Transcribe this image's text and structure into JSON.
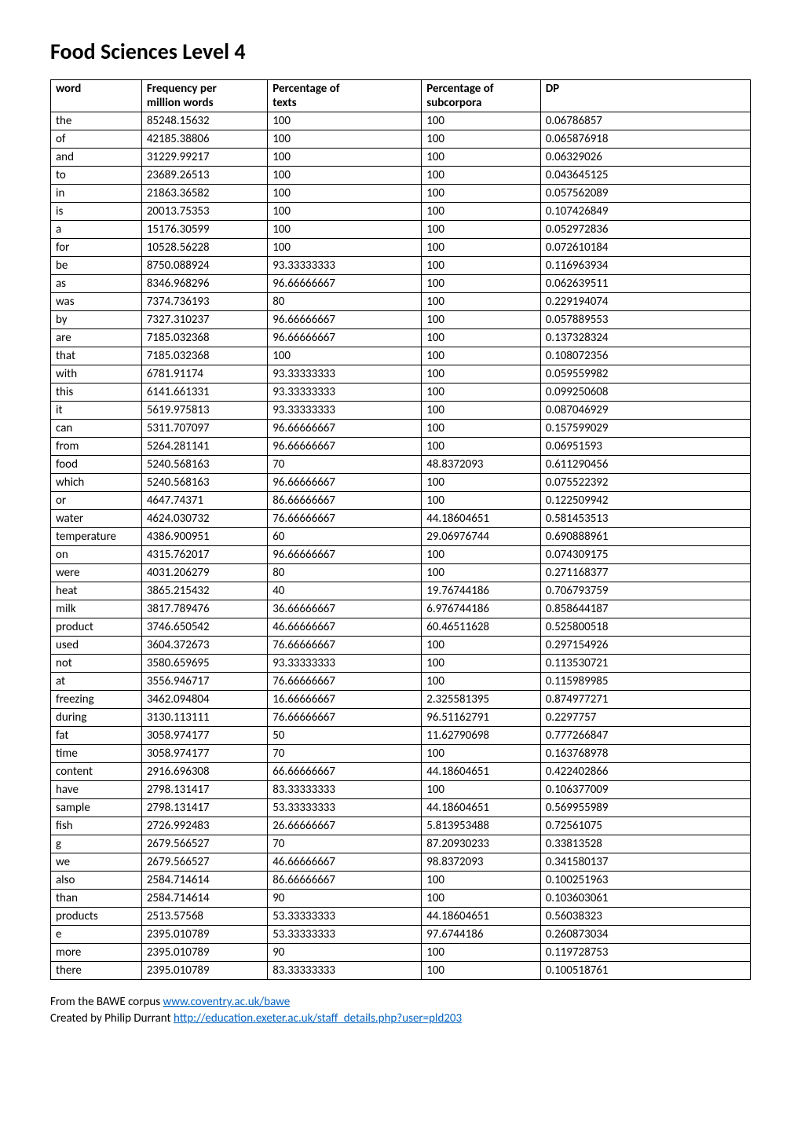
{
  "title": "Food Sciences  Level 4",
  "table": {
    "columns": [
      {
        "header_l1": "word",
        "header_l2": ""
      },
      {
        "header_l1": "Frequency per",
        "header_l2": "million words"
      },
      {
        "header_l1": "Percentage of",
        "header_l2": "texts"
      },
      {
        "header_l1": "Percentage of",
        "header_l2": "subcorpora"
      },
      {
        "header_l1": "DP",
        "header_l2": ""
      }
    ],
    "rows": [
      [
        "the",
        "85248.15632",
        "100",
        "100",
        "0.06786857"
      ],
      [
        "of",
        "42185.38806",
        "100",
        "100",
        "0.065876918"
      ],
      [
        "and",
        "31229.99217",
        "100",
        "100",
        "0.06329026"
      ],
      [
        "to",
        "23689.26513",
        "100",
        "100",
        "0.043645125"
      ],
      [
        "in",
        "21863.36582",
        "100",
        "100",
        "0.057562089"
      ],
      [
        "is",
        "20013.75353",
        "100",
        "100",
        "0.107426849"
      ],
      [
        "a",
        "15176.30599",
        "100",
        "100",
        "0.052972836"
      ],
      [
        "for",
        "10528.56228",
        "100",
        "100",
        "0.072610184"
      ],
      [
        "be",
        "8750.088924",
        "93.33333333",
        "100",
        "0.116963934"
      ],
      [
        "as",
        "8346.968296",
        "96.66666667",
        "100",
        "0.062639511"
      ],
      [
        "was",
        "7374.736193",
        "80",
        "100",
        "0.229194074"
      ],
      [
        "by",
        "7327.310237",
        "96.66666667",
        "100",
        "0.057889553"
      ],
      [
        "are",
        "7185.032368",
        "96.66666667",
        "100",
        "0.137328324"
      ],
      [
        "that",
        "7185.032368",
        "100",
        "100",
        "0.108072356"
      ],
      [
        "with",
        "6781.91174",
        "93.33333333",
        "100",
        "0.059559982"
      ],
      [
        "this",
        "6141.661331",
        "93.33333333",
        "100",
        "0.099250608"
      ],
      [
        "it",
        "5619.975813",
        "93.33333333",
        "100",
        "0.087046929"
      ],
      [
        "can",
        "5311.707097",
        "96.66666667",
        "100",
        "0.157599029"
      ],
      [
        "from",
        "5264.281141",
        "96.66666667",
        "100",
        "0.06951593"
      ],
      [
        "food",
        "5240.568163",
        "70",
        "48.8372093",
        "0.611290456"
      ],
      [
        "which",
        "5240.568163",
        "96.66666667",
        "100",
        "0.075522392"
      ],
      [
        "or",
        "4647.74371",
        "86.66666667",
        "100",
        "0.122509942"
      ],
      [
        "water",
        "4624.030732",
        "76.66666667",
        "44.18604651",
        "0.581453513"
      ],
      [
        "temperature",
        "4386.900951",
        "60",
        "29.06976744",
        "0.690888961"
      ],
      [
        "on",
        "4315.762017",
        "96.66666667",
        "100",
        "0.074309175"
      ],
      [
        "were",
        "4031.206279",
        "80",
        "100",
        "0.271168377"
      ],
      [
        "heat",
        "3865.215432",
        "40",
        "19.76744186",
        "0.706793759"
      ],
      [
        "milk",
        "3817.789476",
        "36.66666667",
        "6.976744186",
        "0.858644187"
      ],
      [
        "product",
        "3746.650542",
        "46.66666667",
        "60.46511628",
        "0.525800518"
      ],
      [
        "used",
        "3604.372673",
        "76.66666667",
        "100",
        "0.297154926"
      ],
      [
        "not",
        "3580.659695",
        "93.33333333",
        "100",
        "0.113530721"
      ],
      [
        "at",
        "3556.946717",
        "76.66666667",
        "100",
        "0.115989985"
      ],
      [
        "freezing",
        "3462.094804",
        "16.66666667",
        "2.325581395",
        "0.874977271"
      ],
      [
        "during",
        "3130.113111",
        "76.66666667",
        "96.51162791",
        "0.2297757"
      ],
      [
        "fat",
        "3058.974177",
        "50",
        "11.62790698",
        "0.777266847"
      ],
      [
        "time",
        "3058.974177",
        "70",
        "100",
        "0.163768978"
      ],
      [
        "content",
        "2916.696308",
        "66.66666667",
        "44.18604651",
        "0.422402866"
      ],
      [
        "have",
        "2798.131417",
        "83.33333333",
        "100",
        "0.106377009"
      ],
      [
        "sample",
        "2798.131417",
        "53.33333333",
        "44.18604651",
        "0.569955989"
      ],
      [
        "fish",
        "2726.992483",
        "26.66666667",
        "5.813953488",
        "0.72561075"
      ],
      [
        "g",
        "2679.566527",
        "70",
        "87.20930233",
        "0.33813528"
      ],
      [
        "we",
        "2679.566527",
        "46.66666667",
        "98.8372093",
        "0.341580137"
      ],
      [
        "also",
        "2584.714614",
        "86.66666667",
        "100",
        "0.100251963"
      ],
      [
        "than",
        "2584.714614",
        "90",
        "100",
        "0.103603061"
      ],
      [
        "products",
        "2513.57568",
        "53.33333333",
        "44.18604651",
        "0.56038323"
      ],
      [
        "e",
        "2395.010789",
        "53.33333333",
        "97.6744186",
        "0.260873034"
      ],
      [
        "more",
        "2395.010789",
        "90",
        "100",
        "0.119728753"
      ],
      [
        "there",
        "2395.010789",
        "83.33333333",
        "100",
        "0.100518761"
      ]
    ]
  },
  "footer": {
    "line1_prefix": "From the BAWE corpus ",
    "line1_link_text": "www.coventry.ac.uk/bawe",
    "line2_prefix": "Created by Philip Durrant ",
    "line2_link_text": "http://education.exeter.ac.uk/staff_details.php?user=pld203"
  }
}
